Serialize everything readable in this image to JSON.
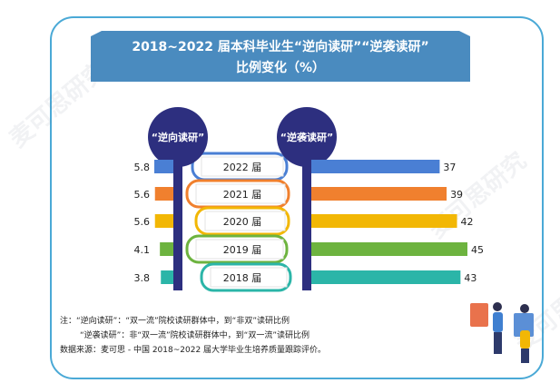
{
  "title": {
    "line1": "2018~2022 届本科毕业生“逆向读研”“逆袭读研”",
    "line2": "比例变化（%）"
  },
  "left_header": "“逆向读研”",
  "right_header": "“逆袭读研”",
  "watermark": "麦可思研究",
  "notes": [
    "注：“逆向读研”：“双一流”院校读研群体中，到“非双”读研比例",
    "“逆袭读研”：非“双一流”院校读研群体中，到“双一流”读研比例",
    "数据来源：麦可思 - 中国 2018~2022 届大学毕业生培养质量跟踪评价。"
  ],
  "colors": {
    "banner": "#4a8bbf",
    "pillar": "#2d2f7f",
    "border": "#4aa9d6"
  },
  "chart_data": {
    "type": "bar",
    "categories": [
      "2022 届",
      "2021 届",
      "2020 届",
      "2019 届",
      "2018 届"
    ],
    "series": [
      {
        "name": "“逆向读研”",
        "values": [
          5.8,
          5.6,
          5.6,
          4.1,
          3.8
        ]
      },
      {
        "name": "“逆袭读研”",
        "values": [
          37,
          39,
          42,
          45,
          43
        ]
      }
    ],
    "value_labels_left": [
      "5.8",
      "5.6",
      "5.6",
      "4.1",
      "3.8"
    ],
    "value_labels_right": [
      "37",
      "39",
      "42",
      "45",
      "43"
    ],
    "bar_colors": [
      "#4a7fd4",
      "#f0802e",
      "#f2b705",
      "#6db33f",
      "#2bb5a8"
    ]
  }
}
